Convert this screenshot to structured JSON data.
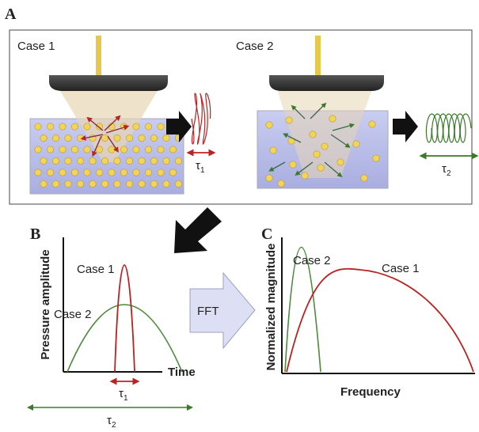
{
  "panel_a": {
    "label": "A",
    "case_1": {
      "title": "Case 1",
      "tau": {
        "symbol": "τ",
        "subscript": "1"
      }
    },
    "case_2": {
      "title": "Case 2",
      "tau": {
        "symbol": "τ",
        "subscript": "2"
      }
    }
  },
  "panel_b": {
    "label": "B",
    "y_axis": "Pressure amplitude",
    "x_axis": "Time",
    "curve_labels": [
      "Case 1",
      "Case 2"
    ],
    "tau_1": {
      "symbol": "τ",
      "subscript": "1"
    },
    "tau_2": {
      "symbol": "τ",
      "subscript": "2"
    }
  },
  "fft": "FFT",
  "panel_c": {
    "label": "C",
    "y_axis": "Normalized magnitude",
    "x_axis": "Frequency",
    "curve_labels": [
      "Case 1",
      "Case 2"
    ]
  }
}
